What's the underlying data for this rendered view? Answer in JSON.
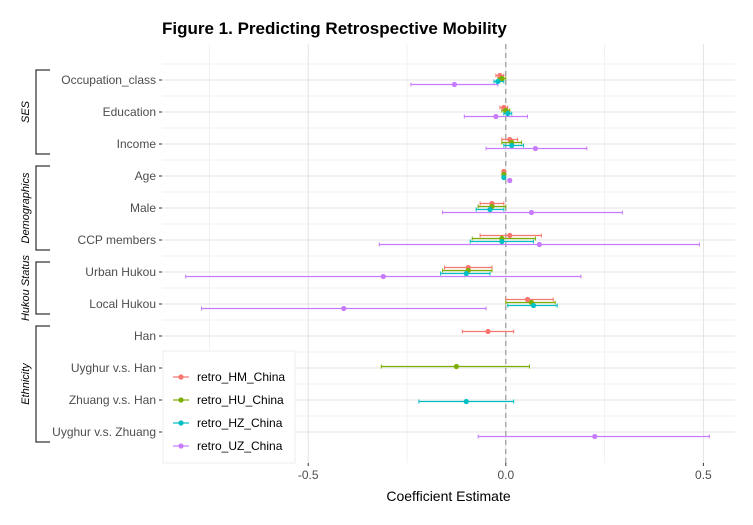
{
  "chart_data": {
    "type": "scatter",
    "subtype": "coefficient-plot-with-error-bars",
    "title": "Figure 1. Predicting Retrospective Mobility",
    "xlabel": "Coefficient Estimate",
    "ylabel": "",
    "xlim": [
      -0.87,
      0.58
    ],
    "x_ticks": [
      -0.5,
      0.0,
      0.5
    ],
    "x_tick_labels": [
      "-0.5",
      "0.0",
      "0.5"
    ],
    "reference_line": 0,
    "grid": true,
    "legend_position": "bottom-left inside",
    "categories": [
      "Occupation_class",
      "Education",
      "Income",
      "Age",
      "Male",
      "CCP members",
      "Urban Hukou",
      "Local Hukou",
      "Han",
      "Uyghur v.s. Han",
      "Zhuang v.s. Han",
      "Uyghur v.s. Zhuang"
    ],
    "groups": [
      {
        "label": "SES",
        "categories": [
          "Occupation_class",
          "Education",
          "Income"
        ]
      },
      {
        "label": "Demographics",
        "categories": [
          "Age",
          "Male",
          "CCP members"
        ]
      },
      {
        "label": "Hukou Status",
        "categories": [
          "Urban Hukou",
          "Local Hukou"
        ]
      },
      {
        "label": "Ethnicity",
        "categories": [
          "Han",
          "Uyghur v.s. Han",
          "Zhuang v.s. Han",
          "Uyghur v.s. Zhuang"
        ]
      }
    ],
    "series": [
      {
        "name": "retro_HM_China",
        "color": "#F8766D",
        "points": [
          {
            "category": "Occupation_class",
            "estimate": -0.015,
            "low": -0.025,
            "high": -0.005
          },
          {
            "category": "Education",
            "estimate": -0.005,
            "low": -0.015,
            "high": 0.005
          },
          {
            "category": "Income",
            "estimate": 0.01,
            "low": -0.01,
            "high": 0.03
          },
          {
            "category": "Age",
            "estimate": -0.005,
            "low": -0.007,
            "high": -0.003
          },
          {
            "category": "Male",
            "estimate": -0.035,
            "low": -0.065,
            "high": -0.005
          },
          {
            "category": "CCP members",
            "estimate": 0.01,
            "low": -0.065,
            "high": 0.09
          },
          {
            "category": "Urban Hukou",
            "estimate": -0.095,
            "low": -0.155,
            "high": -0.035
          },
          {
            "category": "Local Hukou",
            "estimate": 0.055,
            "low": 0.0,
            "high": 0.12
          },
          {
            "category": "Han",
            "estimate": -0.045,
            "low": -0.11,
            "high": 0.02
          }
        ]
      },
      {
        "name": "retro_HU_China",
        "color": "#7CAE00",
        "points": [
          {
            "category": "Occupation_class",
            "estimate": -0.01,
            "low": -0.02,
            "high": 0.0
          },
          {
            "category": "Education",
            "estimate": 0.0,
            "low": -0.01,
            "high": 0.01
          },
          {
            "category": "Income",
            "estimate": 0.015,
            "low": -0.01,
            "high": 0.04
          },
          {
            "category": "Age",
            "estimate": -0.005,
            "low": -0.007,
            "high": -0.003
          },
          {
            "category": "Male",
            "estimate": -0.035,
            "low": -0.07,
            "high": 0.0
          },
          {
            "category": "CCP members",
            "estimate": -0.01,
            "low": -0.085,
            "high": 0.075
          },
          {
            "category": "Urban Hukou",
            "estimate": -0.095,
            "low": -0.16,
            "high": -0.035
          },
          {
            "category": "Local Hukou",
            "estimate": 0.065,
            "low": 0.0,
            "high": 0.125
          },
          {
            "category": "Uyghur v.s. Han",
            "estimate": -0.125,
            "low": -0.315,
            "high": 0.06
          }
        ]
      },
      {
        "name": "retro_HZ_China",
        "color": "#00BFC4",
        "points": [
          {
            "category": "Occupation_class",
            "estimate": -0.02,
            "low": -0.03,
            "high": -0.005
          },
          {
            "category": "Education",
            "estimate": 0.005,
            "low": -0.005,
            "high": 0.015
          },
          {
            "category": "Income",
            "estimate": 0.015,
            "low": -0.005,
            "high": 0.045
          },
          {
            "category": "Age",
            "estimate": -0.005,
            "low": -0.007,
            "high": -0.003
          },
          {
            "category": "Male",
            "estimate": -0.04,
            "low": -0.075,
            "high": -0.005
          },
          {
            "category": "CCP members",
            "estimate": -0.01,
            "low": -0.09,
            "high": 0.07
          },
          {
            "category": "Urban Hukou",
            "estimate": -0.1,
            "low": -0.165,
            "high": -0.04
          },
          {
            "category": "Local Hukou",
            "estimate": 0.07,
            "low": 0.005,
            "high": 0.13
          },
          {
            "category": "Zhuang v.s. Han",
            "estimate": -0.1,
            "low": -0.22,
            "high": 0.02
          }
        ]
      },
      {
        "name": "retro_UZ_China",
        "color": "#C77CFF",
        "points": [
          {
            "category": "Occupation_class",
            "estimate": -0.13,
            "low": -0.24,
            "high": -0.02
          },
          {
            "category": "Education",
            "estimate": -0.025,
            "low": -0.105,
            "high": 0.055
          },
          {
            "category": "Income",
            "estimate": 0.075,
            "low": -0.05,
            "high": 0.205
          },
          {
            "category": "Age",
            "estimate": 0.01,
            "low": 0.006,
            "high": 0.014
          },
          {
            "category": "Male",
            "estimate": 0.065,
            "low": -0.16,
            "high": 0.295
          },
          {
            "category": "CCP members",
            "estimate": 0.085,
            "low": -0.32,
            "high": 0.49
          },
          {
            "category": "Urban Hukou",
            "estimate": -0.31,
            "low": -0.81,
            "high": 0.19
          },
          {
            "category": "Local Hukou",
            "estimate": -0.41,
            "low": -0.77,
            "high": -0.05
          },
          {
            "category": "Uyghur v.s. Zhuang",
            "estimate": 0.225,
            "low": -0.07,
            "high": 0.515
          }
        ]
      }
    ]
  }
}
